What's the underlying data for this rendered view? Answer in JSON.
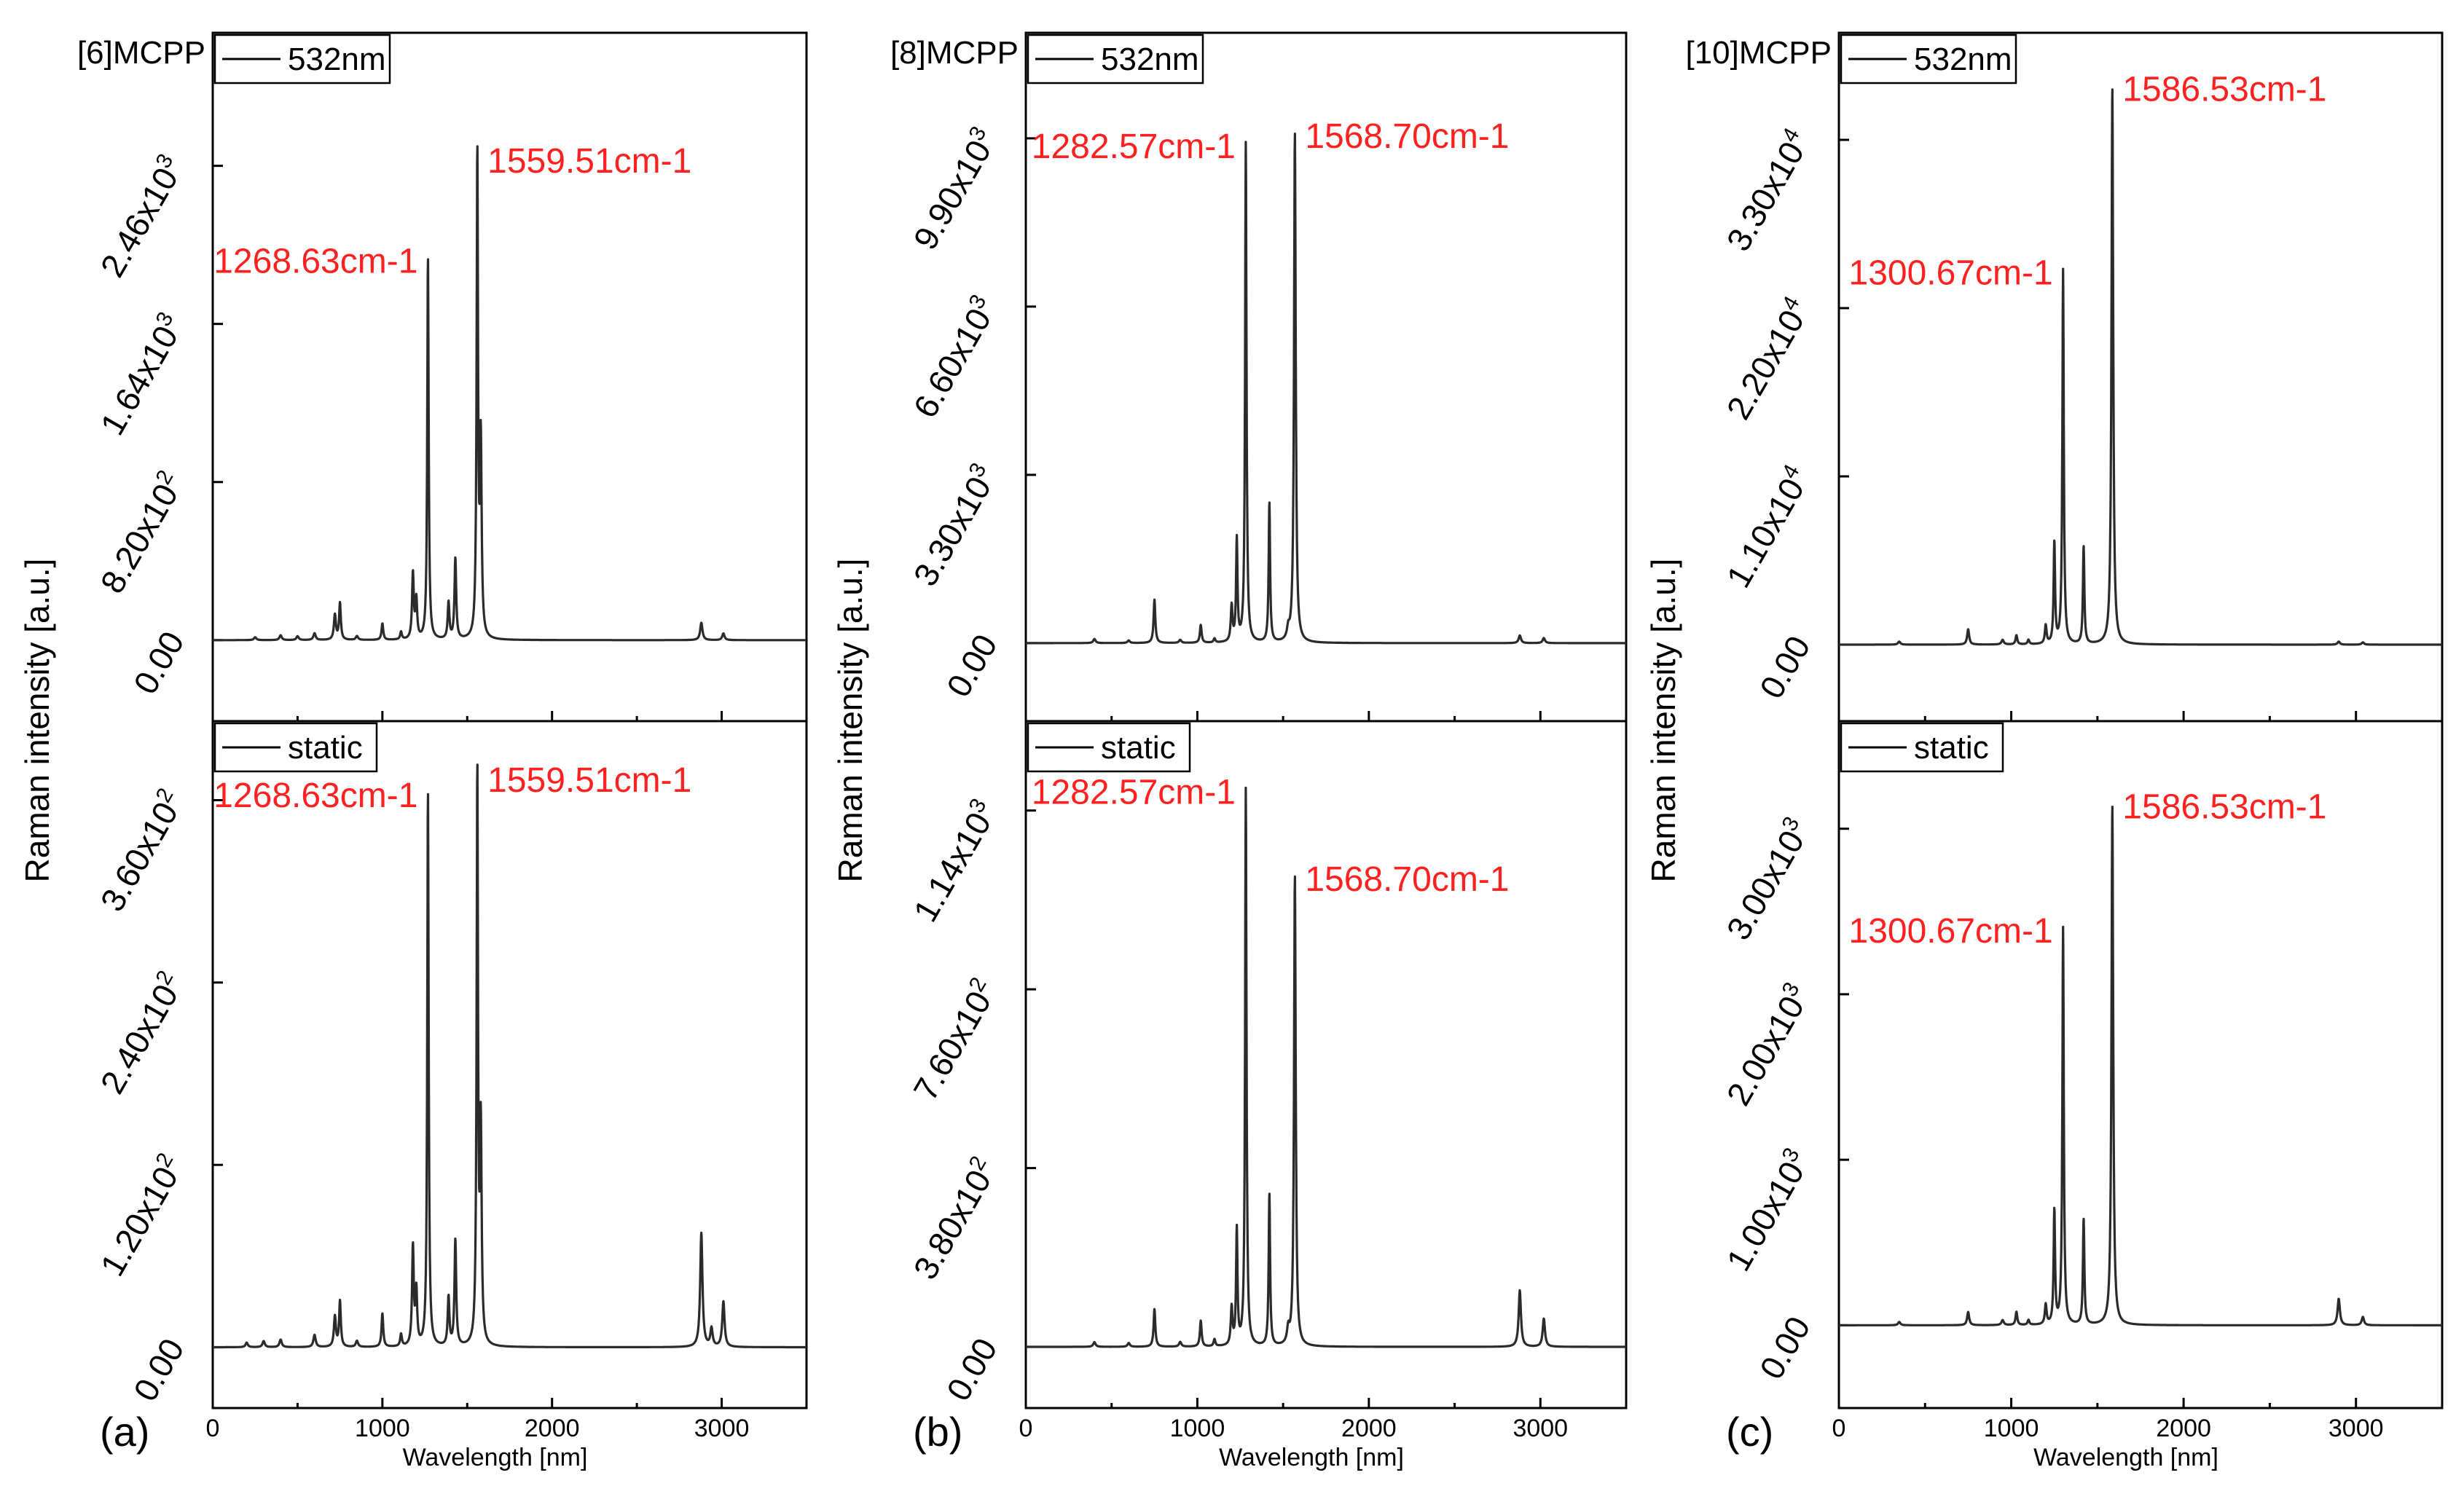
{
  "chart_data": [
    {
      "type": "line",
      "panel_label": "(a)",
      "title": "[6]MCPP",
      "xlabel": "Wavelength [nm]",
      "ylabel": "Raman intensity [a.u.]",
      "xlim": [
        0,
        3500
      ],
      "x_ticks": [
        "0",
        "1000",
        "2000",
        "3000"
      ],
      "subplots": [
        {
          "legend": "532nm",
          "ylim": [
            -420,
            3150
          ],
          "y_ticks": [
            {
              "value": 0,
              "mantissa": "0.00",
              "exp": ""
            },
            {
              "value": 820,
              "mantissa": "8.20x10",
              "exp": "2"
            },
            {
              "value": 1640,
              "mantissa": "1.64x10",
              "exp": "3"
            },
            {
              "value": 2460,
              "mantissa": "2.46x10",
              "exp": "3"
            }
          ],
          "peaks": [
            {
              "x": 250,
              "y": 15,
              "w": 8
            },
            {
              "x": 400,
              "y": 25,
              "w": 8
            },
            {
              "x": 500,
              "y": 20,
              "w": 8
            },
            {
              "x": 600,
              "y": 35,
              "w": 8
            },
            {
              "x": 720,
              "y": 130,
              "w": 7
            },
            {
              "x": 750,
              "y": 190,
              "w": 6
            },
            {
              "x": 850,
              "y": 20,
              "w": 8
            },
            {
              "x": 1000,
              "y": 85,
              "w": 6
            },
            {
              "x": 1110,
              "y": 40,
              "w": 6
            },
            {
              "x": 1180,
              "y": 340,
              "w": 6
            },
            {
              "x": 1200,
              "y": 200,
              "w": 6
            },
            {
              "x": 1268.63,
              "y": 1980,
              "w": 5
            },
            {
              "x": 1390,
              "y": 190,
              "w": 6
            },
            {
              "x": 1430,
              "y": 420,
              "w": 6
            },
            {
              "x": 1559.51,
              "y": 2500,
              "w": 5
            },
            {
              "x": 1580,
              "y": 1000,
              "w": 6
            },
            {
              "x": 2880,
              "y": 90,
              "w": 8
            },
            {
              "x": 3010,
              "y": 35,
              "w": 8
            }
          ],
          "annotations": [
            {
              "text": "1268.63cm-1",
              "x": 1268.63,
              "y": 1980
            },
            {
              "text": "1559.51cm-1",
              "x": 1559.51,
              "y": 2500
            }
          ]
        },
        {
          "legend": "static",
          "ylim": [
            -40,
            412
          ],
          "y_ticks": [
            {
              "value": 0,
              "mantissa": "0.00",
              "exp": ""
            },
            {
              "value": 120,
              "mantissa": "1.20x10",
              "exp": "2"
            },
            {
              "value": 240,
              "mantissa": "2.40x10",
              "exp": "2"
            },
            {
              "value": 360,
              "mantissa": "3.60x10",
              "exp": "2"
            }
          ],
          "peaks": [
            {
              "x": 200,
              "y": 3,
              "w": 8
            },
            {
              "x": 300,
              "y": 4,
              "w": 8
            },
            {
              "x": 400,
              "y": 5,
              "w": 8
            },
            {
              "x": 600,
              "y": 8,
              "w": 8
            },
            {
              "x": 720,
              "y": 20,
              "w": 7
            },
            {
              "x": 750,
              "y": 30,
              "w": 6
            },
            {
              "x": 850,
              "y": 4,
              "w": 8
            },
            {
              "x": 1000,
              "y": 22,
              "w": 6
            },
            {
              "x": 1110,
              "y": 8,
              "w": 6
            },
            {
              "x": 1180,
              "y": 65,
              "w": 6
            },
            {
              "x": 1200,
              "y": 35,
              "w": 6
            },
            {
              "x": 1268.63,
              "y": 365,
              "w": 5
            },
            {
              "x": 1390,
              "y": 32,
              "w": 6
            },
            {
              "x": 1430,
              "y": 70,
              "w": 6
            },
            {
              "x": 1559.51,
              "y": 375,
              "w": 5
            },
            {
              "x": 1580,
              "y": 140,
              "w": 6
            },
            {
              "x": 2880,
              "y": 75,
              "w": 8
            },
            {
              "x": 2940,
              "y": 12,
              "w": 8
            },
            {
              "x": 3010,
              "y": 30,
              "w": 8
            }
          ],
          "annotations": [
            {
              "text": "1268.63cm-1",
              "x": 1268.63,
              "y": 365
            },
            {
              "text": "1559.51cm-1",
              "x": 1559.51,
              "y": 375
            }
          ]
        }
      ]
    },
    {
      "type": "line",
      "panel_label": "(b)",
      "title": "[8]MCPP",
      "xlabel": "Wavelength [nm]",
      "ylabel": "Raman intensity [a.u.]",
      "xlim": [
        0,
        3500
      ],
      "x_ticks": [
        "0",
        "1000",
        "2000",
        "3000"
      ],
      "subplots": [
        {
          "legend": "532nm",
          "ylim": [
            -1530,
            11970
          ],
          "y_ticks": [
            {
              "value": 0,
              "mantissa": "0.00",
              "exp": ""
            },
            {
              "value": 3300,
              "mantissa": "3.30x10",
              "exp": "3"
            },
            {
              "value": 6600,
              "mantissa": "6.60x10",
              "exp": "3"
            },
            {
              "value": 9900,
              "mantissa": "9.90x10",
              "exp": "3"
            }
          ],
          "peaks": [
            {
              "x": 400,
              "y": 80,
              "w": 8
            },
            {
              "x": 600,
              "y": 50,
              "w": 8
            },
            {
              "x": 750,
              "y": 850,
              "w": 6
            },
            {
              "x": 900,
              "y": 60,
              "w": 8
            },
            {
              "x": 1020,
              "y": 350,
              "w": 6
            },
            {
              "x": 1100,
              "y": 80,
              "w": 6
            },
            {
              "x": 1200,
              "y": 700,
              "w": 6
            },
            {
              "x": 1230,
              "y": 2000,
              "w": 5
            },
            {
              "x": 1282.57,
              "y": 9800,
              "w": 5
            },
            {
              "x": 1420,
              "y": 2750,
              "w": 5
            },
            {
              "x": 1530,
              "y": 200,
              "w": 8
            },
            {
              "x": 1568.7,
              "y": 10000,
              "w": 6
            },
            {
              "x": 2880,
              "y": 150,
              "w": 8
            },
            {
              "x": 3020,
              "y": 100,
              "w": 8
            }
          ],
          "annotations": [
            {
              "text": "1282.57cm-1",
              "x": 1282.57,
              "y": 9800
            },
            {
              "text": "1568.70cm-1",
              "x": 1568.7,
              "y": 10000
            }
          ]
        },
        {
          "legend": "static",
          "ylim": [
            -130,
            1330
          ],
          "y_ticks": [
            {
              "value": 0,
              "mantissa": "0.00",
              "exp": ""
            },
            {
              "value": 380,
              "mantissa": "3.80x10",
              "exp": "2"
            },
            {
              "value": 760,
              "mantissa": "7.60x10",
              "exp": "2"
            },
            {
              "value": 1140,
              "mantissa": "1.14x10",
              "exp": "3"
            }
          ],
          "peaks": [
            {
              "x": 400,
              "y": 10,
              "w": 8
            },
            {
              "x": 600,
              "y": 8,
              "w": 8
            },
            {
              "x": 750,
              "y": 80,
              "w": 6
            },
            {
              "x": 900,
              "y": 10,
              "w": 8
            },
            {
              "x": 1020,
              "y": 55,
              "w": 6
            },
            {
              "x": 1100,
              "y": 15,
              "w": 6
            },
            {
              "x": 1200,
              "y": 80,
              "w": 6
            },
            {
              "x": 1230,
              "y": 245,
              "w": 5
            },
            {
              "x": 1282.57,
              "y": 1185,
              "w": 5
            },
            {
              "x": 1420,
              "y": 325,
              "w": 5
            },
            {
              "x": 1530,
              "y": 30,
              "w": 8
            },
            {
              "x": 1568.7,
              "y": 1000,
              "w": 6
            },
            {
              "x": 2880,
              "y": 120,
              "w": 8
            },
            {
              "x": 3020,
              "y": 60,
              "w": 8
            }
          ],
          "annotations": [
            {
              "text": "1282.57cm-1",
              "x": 1282.57,
              "y": 1185
            },
            {
              "text": "1568.70cm-1",
              "x": 1568.7,
              "y": 1000
            }
          ]
        }
      ]
    },
    {
      "type": "line",
      "panel_label": "(c)",
      "title": "[10]MCPP",
      "xlabel": "Wavelength [nm]",
      "ylabel": "Raman intensity [a.u.]",
      "xlim": [
        0,
        3500
      ],
      "x_ticks": [
        "0",
        "1000",
        "2000",
        "3000"
      ],
      "subplots": [
        {
          "legend": "532nm",
          "ylim": [
            -5000,
            40000
          ],
          "y_ticks": [
            {
              "value": 0,
              "mantissa": "0.00",
              "exp": ""
            },
            {
              "value": 11000,
              "mantissa": "1.10x10",
              "exp": "4"
            },
            {
              "value": 22000,
              "mantissa": "2.20x10",
              "exp": "4"
            },
            {
              "value": 33000,
              "mantissa": "3.30x10",
              "exp": "4"
            }
          ],
          "peaks": [
            {
              "x": 350,
              "y": 200,
              "w": 8
            },
            {
              "x": 750,
              "y": 1000,
              "w": 7
            },
            {
              "x": 950,
              "y": 300,
              "w": 8
            },
            {
              "x": 1030,
              "y": 600,
              "w": 6
            },
            {
              "x": 1100,
              "y": 300,
              "w": 6
            },
            {
              "x": 1200,
              "y": 1200,
              "w": 6
            },
            {
              "x": 1250,
              "y": 6600,
              "w": 5
            },
            {
              "x": 1300.67,
              "y": 24500,
              "w": 5
            },
            {
              "x": 1420,
              "y": 6400,
              "w": 5
            },
            {
              "x": 1586.53,
              "y": 36500,
              "w": 6
            },
            {
              "x": 2900,
              "y": 200,
              "w": 8
            },
            {
              "x": 3040,
              "y": 150,
              "w": 8
            }
          ],
          "annotations": [
            {
              "text": "1300.67cm-1",
              "x": 1300.67,
              "y": 24500
            },
            {
              "text": "1586.53cm-1",
              "x": 1586.53,
              "y": 36500
            }
          ]
        },
        {
          "legend": "static",
          "ylim": [
            -500,
            3650
          ],
          "y_ticks": [
            {
              "value": 0,
              "mantissa": "0.00",
              "exp": ""
            },
            {
              "value": 1000,
              "mantissa": "1.00x10",
              "exp": "3"
            },
            {
              "value": 2000,
              "mantissa": "2.00x10",
              "exp": "3"
            },
            {
              "value": 3000,
              "mantissa": "3.00x10",
              "exp": "3"
            }
          ],
          "peaks": [
            {
              "x": 350,
              "y": 20,
              "w": 8
            },
            {
              "x": 750,
              "y": 80,
              "w": 7
            },
            {
              "x": 950,
              "y": 30,
              "w": 8
            },
            {
              "x": 1030,
              "y": 80,
              "w": 6
            },
            {
              "x": 1100,
              "y": 30,
              "w": 6
            },
            {
              "x": 1200,
              "y": 120,
              "w": 6
            },
            {
              "x": 1250,
              "y": 690,
              "w": 5
            },
            {
              "x": 1300.67,
              "y": 2400,
              "w": 5
            },
            {
              "x": 1420,
              "y": 640,
              "w": 5
            },
            {
              "x": 1586.53,
              "y": 3150,
              "w": 6
            },
            {
              "x": 2900,
              "y": 160,
              "w": 8
            },
            {
              "x": 3040,
              "y": 50,
              "w": 8
            }
          ],
          "annotations": [
            {
              "text": "1300.67cm-1",
              "x": 1300.67,
              "y": 2400
            },
            {
              "text": "1586.53cm-1",
              "x": 1586.53,
              "y": 3150
            }
          ]
        }
      ]
    }
  ]
}
